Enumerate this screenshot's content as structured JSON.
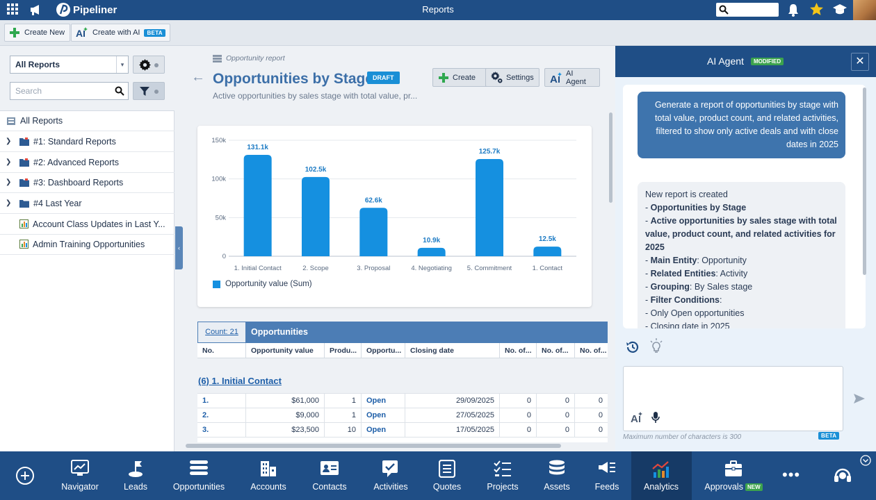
{
  "topbar": {
    "app_name": "Pipeliner",
    "title": "Reports",
    "search_value": ""
  },
  "toolbar": {
    "create_new": "Create New",
    "create_ai": "Create with AI",
    "beta": "BETA"
  },
  "left": {
    "select_value": "All Reports",
    "search_placeholder": "Search",
    "tree": [
      {
        "label": "All Reports",
        "expandable": false,
        "icon": "reports-icon"
      },
      {
        "label": "#1: Standard Reports",
        "expandable": true,
        "icon": "folder-icon"
      },
      {
        "label": "#2: Advanced Reports",
        "expandable": true,
        "icon": "folder-icon"
      },
      {
        "label": "#3: Dashboard Reports",
        "expandable": true,
        "icon": "folder-icon"
      },
      {
        "label": "#4 Last Year",
        "expandable": true,
        "icon": "folder-icon"
      },
      {
        "label": "Account Class Updates in Last Y...",
        "expandable": false,
        "icon": "report-icon"
      },
      {
        "label": "Admin Training Opportunities",
        "expandable": false,
        "icon": "report-icon"
      }
    ]
  },
  "report": {
    "breadcrumb": "Opportunity report",
    "title": "Opportunities by Stage",
    "badge": "DRAFT",
    "subtitle": "Active opportunities by sales stage with total value, pr...",
    "btn_create": "Create",
    "btn_settings": "Settings",
    "btn_ai": "AI Agent"
  },
  "chart_data": {
    "type": "bar",
    "categories": [
      "1. Initial Contact",
      "2. Scope",
      "3. Proposal",
      "4. Negotiating",
      "5. Commitment",
      "1. Contact"
    ],
    "values": [
      131.1,
      102.5,
      62.6,
      10.9,
      125.7,
      12.5
    ],
    "value_labels": [
      "131.1k",
      "102.5k",
      "62.6k",
      "10.9k",
      "125.7k",
      "12.5k"
    ],
    "ylim": [
      0,
      150
    ],
    "yticks": [
      "0",
      "50k",
      "100k",
      "150k"
    ],
    "series_name": "Opportunity value (Sum)",
    "color": "#1590e0",
    "grid": true,
    "legend": "bottom-left"
  },
  "table": {
    "count": "Count: 21",
    "header": "Opportunities",
    "columns": [
      "No.",
      "Opportunity value",
      "Produ...",
      "Opportu...",
      "Closing date",
      "No. of...",
      "No. of...",
      "No. of..."
    ],
    "group_title": "(6) 1. Initial Contact",
    "rows": [
      {
        "no": "1.",
        "value": "$61,000",
        "prod": "1",
        "status": "Open",
        "date": "29/09/2025",
        "a": "0",
        "b": "0",
        "c": "0"
      },
      {
        "no": "2.",
        "value": "$9,000",
        "prod": "1",
        "status": "Open",
        "date": "27/05/2025",
        "a": "0",
        "b": "0",
        "c": "0"
      },
      {
        "no": "3.",
        "value": "$23,500",
        "prod": "10",
        "status": "Open",
        "date": "17/05/2025",
        "a": "0",
        "b": "0",
        "c": "0"
      }
    ]
  },
  "ai": {
    "title": "AI Agent",
    "badge": "MODIFIED",
    "user_message": "Generate a report of opportunities by stage with total value, product count, and related activities, filtered to show only active deals and with close dates in 2025",
    "bot_intro": "New report is created",
    "bot_lines": [
      {
        "bold": "Opportunities by Stage",
        "rest": ""
      },
      {
        "bold": "Active opportunities by sales stage with total value, product count, and related activities for 2025",
        "rest": ""
      },
      {
        "bold": "Main Entity",
        "rest": ": Opportunity"
      },
      {
        "bold": "Related Entities",
        "rest": ": Activity"
      },
      {
        "bold": "Grouping",
        "rest": ": By Sales stage"
      },
      {
        "bold": "Filter Conditions",
        "rest": ":"
      },
      {
        "bold": "",
        "rest": "Only Open opportunities"
      },
      {
        "bold": "",
        "rest": "Closing date in 2025"
      }
    ],
    "input_value": "",
    "hint": "Maximum number of characters is 300",
    "beta": "BETA"
  },
  "bottom_nav": [
    {
      "label": "Navigator",
      "icon": "navigator-icon"
    },
    {
      "label": "Leads",
      "icon": "leads-icon"
    },
    {
      "label": "Opportunities",
      "icon": "opportunities-icon"
    },
    {
      "label": "Accounts",
      "icon": "accounts-icon"
    },
    {
      "label": "Contacts",
      "icon": "contacts-icon"
    },
    {
      "label": "Activities",
      "icon": "activities-icon"
    },
    {
      "label": "Quotes",
      "icon": "quotes-icon"
    },
    {
      "label": "Projects",
      "icon": "projects-icon"
    },
    {
      "label": "Assets",
      "icon": "assets-icon"
    },
    {
      "label": "Feeds",
      "icon": "feeds-icon"
    },
    {
      "label": "Analytics",
      "icon": "analytics-icon",
      "active": true
    },
    {
      "label": "Approvals",
      "icon": "approvals-icon",
      "badge": "NEW"
    }
  ]
}
